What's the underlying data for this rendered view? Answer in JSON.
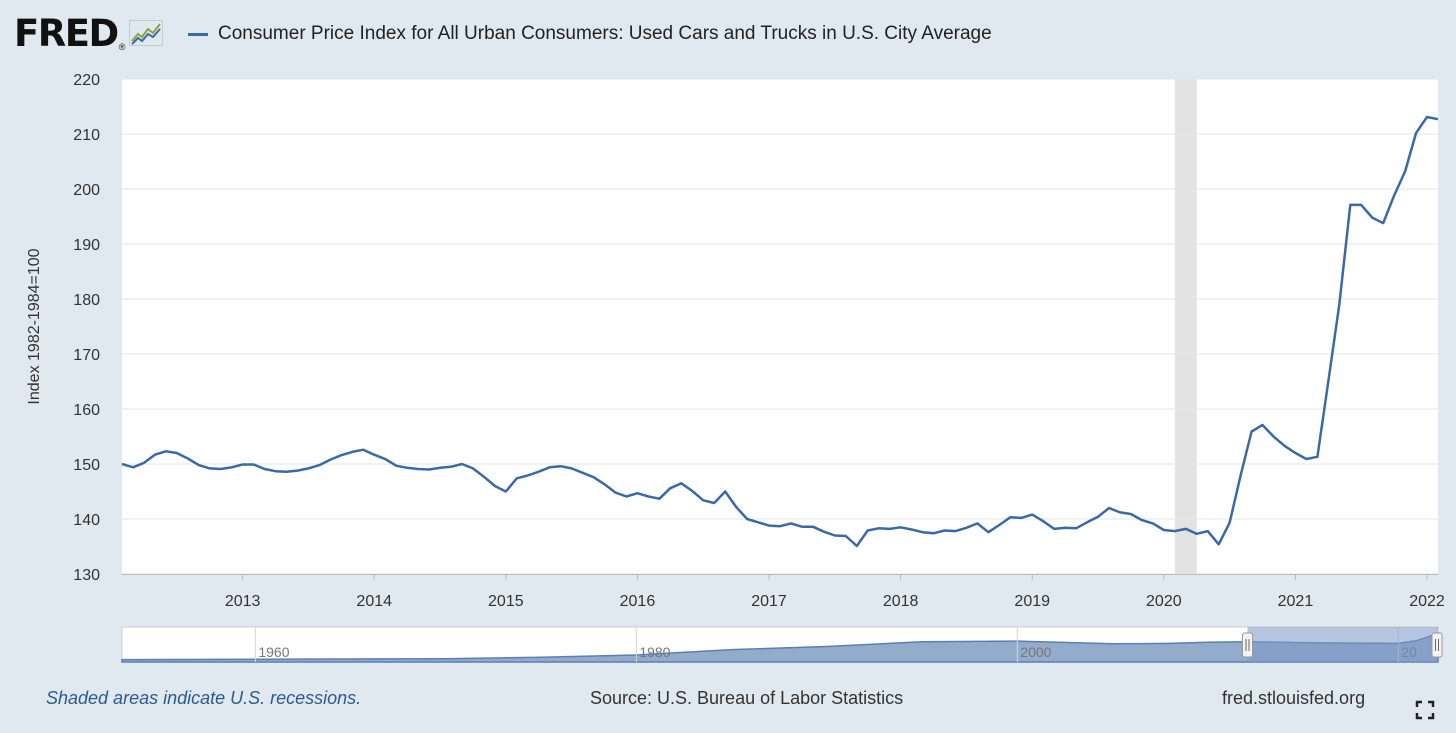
{
  "header": {
    "logo_text": "FRED",
    "logo_mark": "®",
    "logo_icon": "line-chart-icon",
    "series_title": "Consumer Price Index for All Urban Consumers: Used Cars and Trucks in U.S. City Average",
    "series_color": "#3a6aa5"
  },
  "footer": {
    "recession_note": "Shaded areas indicate U.S. recessions.",
    "source": "Source: U.S. Bureau of Labor Statistics",
    "site": "fred.stlouisfed.org",
    "fullscreen_icon": "fullscreen-icon"
  },
  "colors": {
    "background": "#e1e9f0",
    "plot_background": "#ffffff",
    "line": "#3a6aa5",
    "recession": "#e3e3e3",
    "gridline": "#e6e6e6",
    "navigator_fill": "#94accc",
    "navigator_selected": "#7c98c6"
  },
  "chart_data": {
    "type": "line",
    "title": "Consumer Price Index for All Urban Consumers: Used Cars and Trucks in U.S. City Average",
    "ylabel": "Index 1982-1984=100",
    "xlabel": "",
    "ylim": [
      130,
      220
    ],
    "yticks": [
      130,
      140,
      150,
      160,
      170,
      180,
      190,
      200,
      210,
      220
    ],
    "xlim": [
      "2012-02",
      "2022-02"
    ],
    "xticks": [
      "2013",
      "2014",
      "2015",
      "2016",
      "2017",
      "2018",
      "2019",
      "2020",
      "2021",
      "2022"
    ],
    "grid": true,
    "recessions": [
      [
        "2020-02",
        "2020-04"
      ]
    ],
    "series": [
      {
        "name": "Consumer Price Index for All Urban Consumers: Used Cars and Trucks in U.S. City Average",
        "x": [
          "2012-02",
          "2012-03",
          "2012-04",
          "2012-05",
          "2012-06",
          "2012-07",
          "2012-08",
          "2012-09",
          "2012-10",
          "2012-11",
          "2012-12",
          "2013-01",
          "2013-02",
          "2013-03",
          "2013-04",
          "2013-05",
          "2013-06",
          "2013-07",
          "2013-08",
          "2013-09",
          "2013-10",
          "2013-11",
          "2013-12",
          "2014-01",
          "2014-02",
          "2014-03",
          "2014-04",
          "2014-05",
          "2014-06",
          "2014-07",
          "2014-08",
          "2014-09",
          "2014-10",
          "2014-11",
          "2014-12",
          "2015-01",
          "2015-02",
          "2015-03",
          "2015-04",
          "2015-05",
          "2015-06",
          "2015-07",
          "2015-08",
          "2015-09",
          "2015-10",
          "2015-11",
          "2015-12",
          "2016-01",
          "2016-02",
          "2016-03",
          "2016-04",
          "2016-05",
          "2016-06",
          "2016-07",
          "2016-08",
          "2016-09",
          "2016-10",
          "2016-11",
          "2016-12",
          "2017-01",
          "2017-02",
          "2017-03",
          "2017-04",
          "2017-05",
          "2017-06",
          "2017-07",
          "2017-08",
          "2017-09",
          "2017-10",
          "2017-11",
          "2017-12",
          "2018-01",
          "2018-02",
          "2018-03",
          "2018-04",
          "2018-05",
          "2018-06",
          "2018-07",
          "2018-08",
          "2018-09",
          "2018-10",
          "2018-11",
          "2018-12",
          "2019-01",
          "2019-02",
          "2019-03",
          "2019-04",
          "2019-05",
          "2019-06",
          "2019-07",
          "2019-08",
          "2019-09",
          "2019-10",
          "2019-11",
          "2019-12",
          "2020-01",
          "2020-02",
          "2020-03",
          "2020-04",
          "2020-05",
          "2020-06",
          "2020-07",
          "2020-08",
          "2020-09",
          "2020-10",
          "2020-11",
          "2020-12",
          "2021-01",
          "2021-02",
          "2021-03",
          "2021-04",
          "2021-05",
          "2021-06",
          "2021-07",
          "2021-08",
          "2021-09",
          "2021-10",
          "2021-11",
          "2021-12",
          "2022-01",
          "2022-02"
        ],
        "values": [
          150.0,
          149.4,
          150.2,
          151.7,
          152.3,
          152.0,
          151.0,
          149.8,
          149.2,
          149.1,
          149.4,
          149.9,
          149.9,
          149.1,
          148.7,
          148.6,
          148.8,
          149.2,
          149.8,
          150.8,
          151.6,
          152.2,
          152.6,
          151.7,
          150.9,
          149.7,
          149.3,
          149.1,
          149.0,
          149.3,
          149.5,
          150.0,
          149.2,
          147.7,
          146.0,
          145.0,
          147.4,
          147.9,
          148.6,
          149.4,
          149.6,
          149.2,
          148.4,
          147.6,
          146.3,
          144.8,
          144.1,
          144.7,
          144.1,
          143.7,
          145.6,
          146.5,
          145.1,
          143.4,
          142.9,
          145.0,
          142.2,
          140.0,
          139.4,
          138.8,
          138.7,
          139.2,
          138.6,
          138.6,
          137.7,
          137.0,
          136.9,
          135.1,
          137.9,
          138.3,
          138.2,
          138.5,
          138.1,
          137.6,
          137.4,
          137.9,
          137.8,
          138.4,
          139.2,
          137.6,
          138.9,
          140.3,
          140.2,
          140.8,
          139.6,
          138.2,
          138.4,
          138.3,
          139.4,
          140.4,
          142.0,
          141.2,
          140.9,
          139.8,
          139.2,
          138.0,
          137.8,
          138.2,
          137.3,
          137.8,
          135.4,
          139.3,
          147.9,
          155.9,
          157.1,
          155.0,
          153.3,
          152.0,
          150.9,
          151.3,
          165.0,
          179.0,
          197.1,
          197.1,
          194.8,
          193.8,
          198.8,
          203.2,
          210.2,
          213.1,
          212.7
        ]
      }
    ],
    "navigator": {
      "range": [
        "1953",
        "2022"
      ],
      "labels": [
        "1960",
        "1980",
        "2000",
        "20"
      ],
      "selection": [
        "2012-02",
        "2022-02"
      ]
    }
  }
}
